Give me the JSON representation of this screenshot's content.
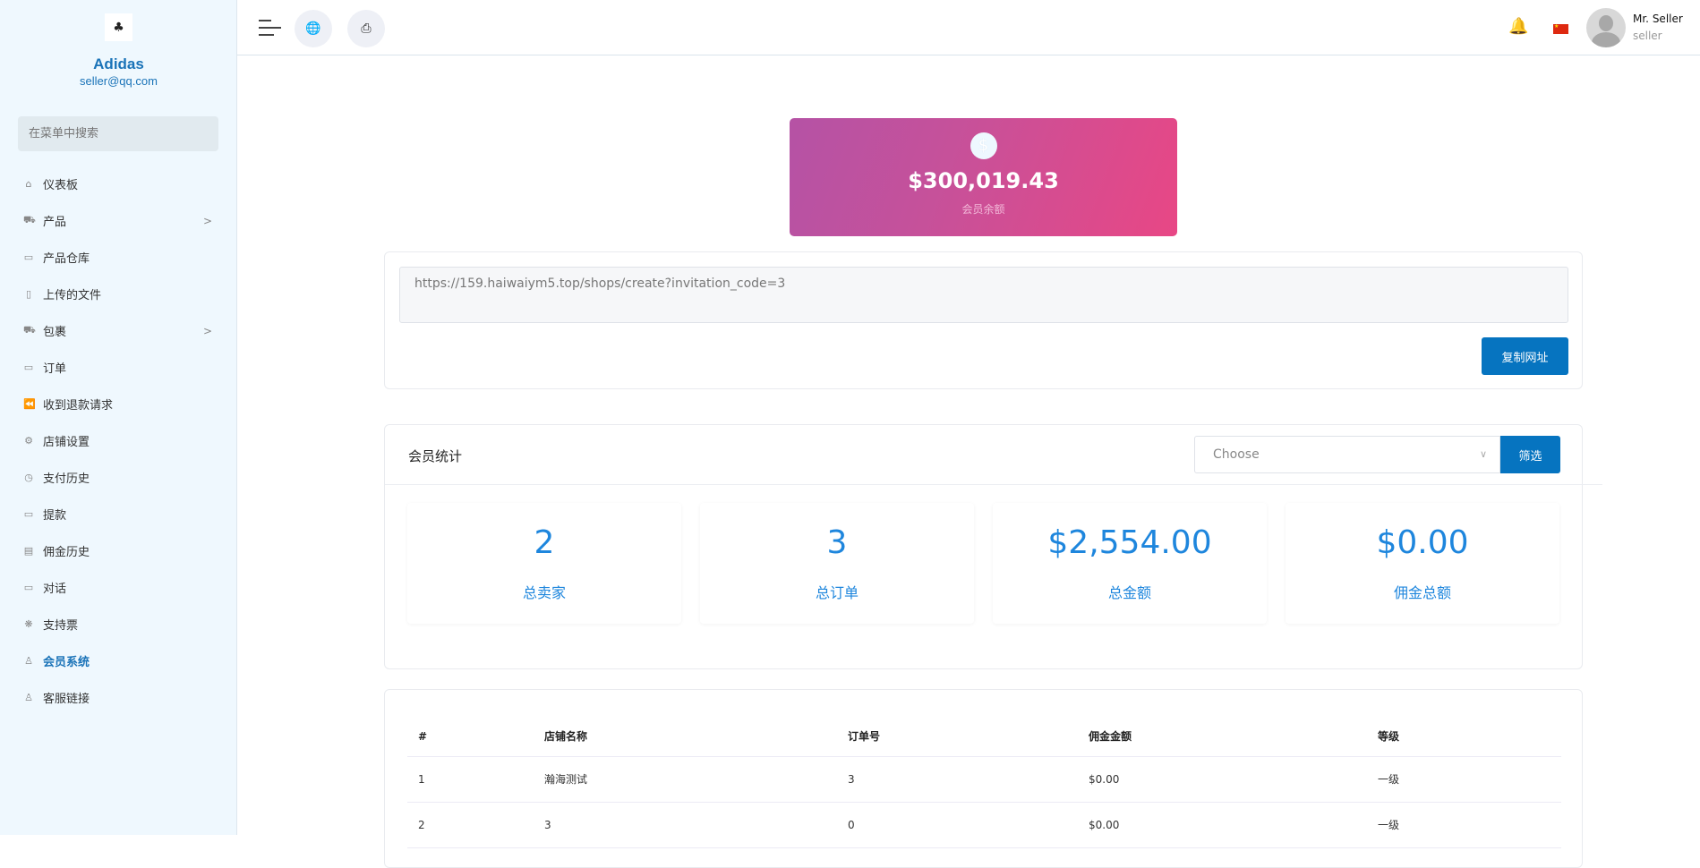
{
  "sidebar": {
    "brand": "Adidas",
    "email": "seller@qq.com",
    "search_placeholder": "在菜单中搜索",
    "items": [
      {
        "label": "仪表板",
        "icon": "home-icon"
      },
      {
        "label": "产品",
        "icon": "cart-icon",
        "has_children": true
      },
      {
        "label": "产品仓库",
        "icon": "archive-icon"
      },
      {
        "label": "上传的文件",
        "icon": "folder-icon"
      },
      {
        "label": "包裹",
        "icon": "cart-icon",
        "has_children": true
      },
      {
        "label": "订单",
        "icon": "money-icon"
      },
      {
        "label": "收到退款请求",
        "icon": "backward-icon"
      },
      {
        "label": "店铺设置",
        "icon": "gear-icon"
      },
      {
        "label": "支付历史",
        "icon": "history-icon"
      },
      {
        "label": "提款",
        "icon": "money-icon"
      },
      {
        "label": "佣金历史",
        "icon": "file-icon"
      },
      {
        "label": "对话",
        "icon": "chat-icon"
      },
      {
        "label": "支持票",
        "icon": "support-icon"
      },
      {
        "label": "会员系统",
        "icon": "user-icon",
        "active": true
      },
      {
        "label": "客服链接",
        "icon": "user-icon"
      }
    ]
  },
  "header": {
    "user_name": "Mr. Seller",
    "user_role": "seller"
  },
  "balance": {
    "amount": "$300,019.43",
    "label": "会员余额"
  },
  "invite": {
    "url": "https://159.haiwaiym5.top/shops/create?invitation_code=3",
    "copy_label": "复制网址"
  },
  "stats": {
    "title": "会员统计",
    "select_placeholder": "Choose",
    "filter_label": "筛选",
    "items": [
      {
        "value": "2",
        "label": "总卖家"
      },
      {
        "value": "3",
        "label": "总订单"
      },
      {
        "value": "$2,554.00",
        "label": "总金额"
      },
      {
        "value": "$0.00",
        "label": "佣金总额"
      }
    ]
  },
  "table": {
    "headers": [
      "#",
      "店铺名称",
      "订单号",
      "佣金金额",
      "等级"
    ],
    "rows": [
      [
        "1",
        "瀚海测试",
        "3",
        "$0.00",
        "一级"
      ],
      [
        "2",
        "3",
        "0",
        "$0.00",
        "一级"
      ]
    ]
  },
  "colors": {
    "accent": "#0674c0",
    "stat_text": "#1e86dd",
    "balance_gradient_start": "#b552a5",
    "balance_gradient_end": "#e84785"
  }
}
